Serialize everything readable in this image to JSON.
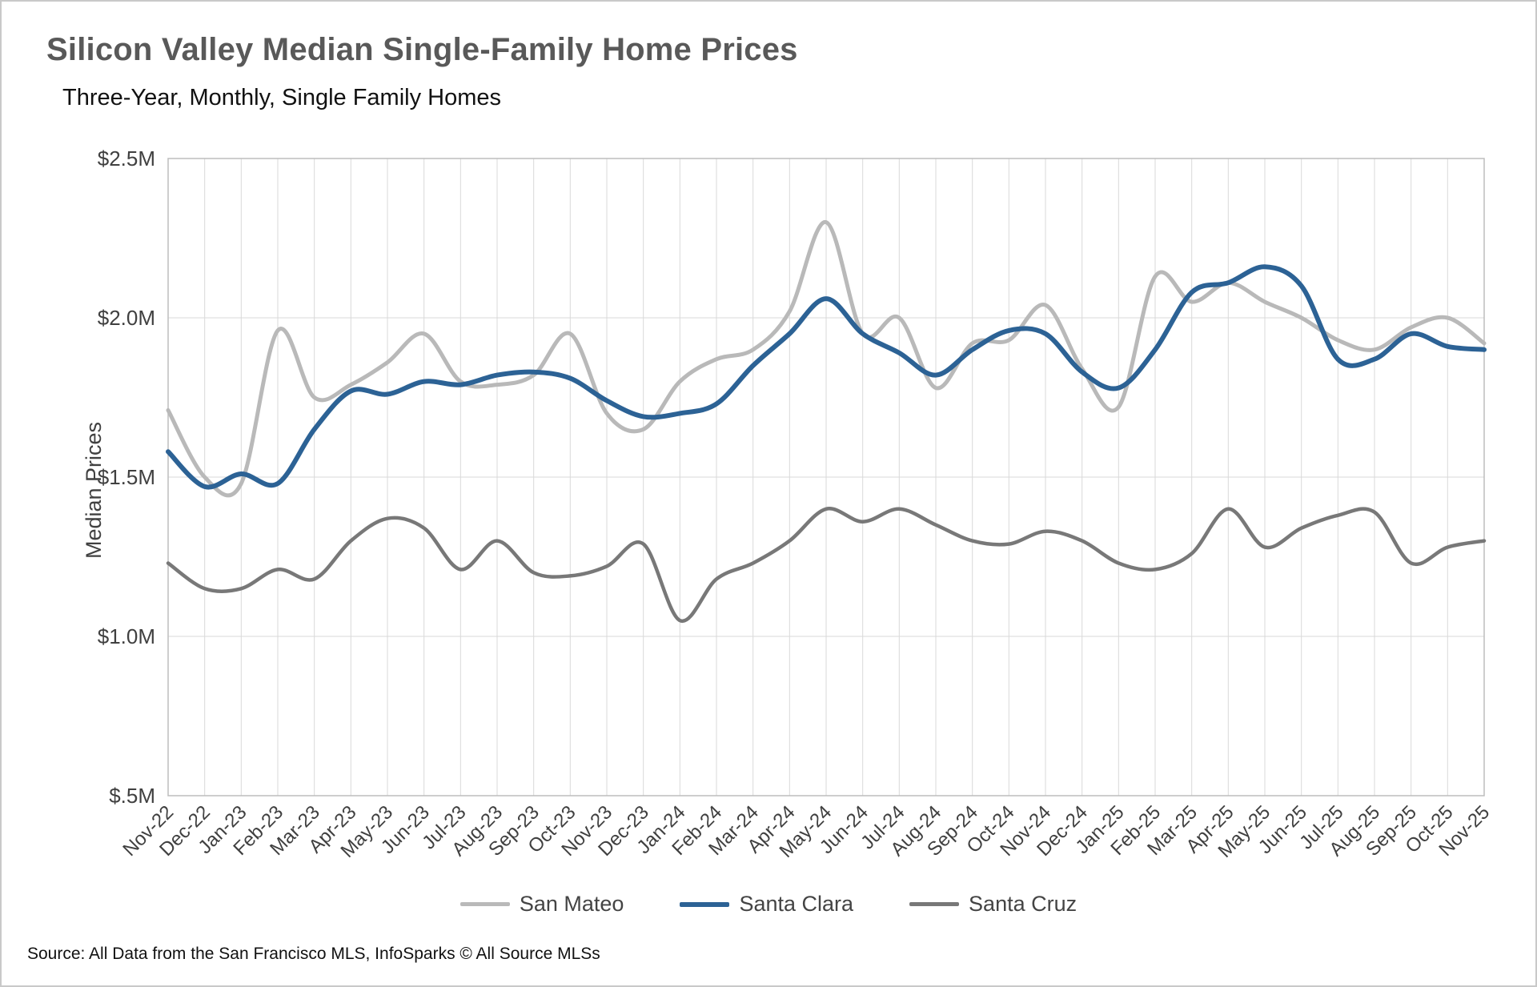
{
  "title": "Silicon Valley Median Single-Family Home Prices",
  "subtitle": "Three-Year, Monthly, Single Family Homes",
  "source": "Source: All Data from the San Francisco MLS, InfoSparks © All Source MLSs",
  "chart_data": {
    "type": "line",
    "title": "Silicon Valley Median Single-Family Home Prices",
    "subtitle": "Three-Year, Monthly, Single Family Homes",
    "xlabel": "",
    "ylabel": "Median Prices",
    "unit": "millions USD",
    "ylim": [
      0.5,
      2.5
    ],
    "ytick_values": [
      0.5,
      1.0,
      1.5,
      2.0,
      2.5
    ],
    "ytick_labels": [
      "$.5M",
      "$1.0M",
      "$1.5M",
      "$2.0M",
      "$2.5M"
    ],
    "grid": "both",
    "legend_position": "bottom",
    "categories": [
      "Nov-22",
      "Dec-22",
      "Jan-23",
      "Feb-23",
      "Mar-23",
      "Apr-23",
      "May-23",
      "Jun-23",
      "Jul-23",
      "Aug-23",
      "Sep-23",
      "Oct-23",
      "Nov-23",
      "Dec-23",
      "Jan-24",
      "Feb-24",
      "Mar-24",
      "Apr-24",
      "May-24",
      "Jun-24",
      "Jul-24",
      "Aug-24",
      "Sep-24",
      "Oct-24",
      "Nov-24",
      "Dec-24",
      "Jan-25",
      "Feb-25",
      "Mar-25",
      "Apr-25",
      "May-25",
      "Jun-25",
      "Jul-25",
      "Aug-25",
      "Sep-25",
      "Oct-25",
      "Nov-25"
    ],
    "series": [
      {
        "name": "San Mateo",
        "color": "#b9b9b9",
        "width": 5,
        "values": [
          1.71,
          1.5,
          1.48,
          1.96,
          1.75,
          1.79,
          1.86,
          1.95,
          1.8,
          1.79,
          1.82,
          1.95,
          1.7,
          1.65,
          1.8,
          1.87,
          1.9,
          2.02,
          2.3,
          1.95,
          2.0,
          1.78,
          1.92,
          1.93,
          2.04,
          1.84,
          1.72,
          2.13,
          2.05,
          2.11,
          2.05,
          2.0,
          1.93,
          1.9,
          1.97,
          2.0,
          1.92
        ]
      },
      {
        "name": "Santa Clara",
        "color": "#2c6295",
        "width": 6,
        "values": [
          1.58,
          1.47,
          1.51,
          1.48,
          1.65,
          1.77,
          1.76,
          1.8,
          1.79,
          1.82,
          1.83,
          1.81,
          1.74,
          1.69,
          1.7,
          1.73,
          1.85,
          1.95,
          2.06,
          1.95,
          1.89,
          1.82,
          1.9,
          1.96,
          1.95,
          1.83,
          1.78,
          1.9,
          2.08,
          2.11,
          2.16,
          2.1,
          1.87,
          1.87,
          1.95,
          1.91,
          1.9
        ]
      },
      {
        "name": "Santa Cruz",
        "color": "#787878",
        "width": 4.5,
        "values": [
          1.23,
          1.15,
          1.15,
          1.21,
          1.18,
          1.3,
          1.37,
          1.34,
          1.21,
          1.3,
          1.2,
          1.19,
          1.22,
          1.29,
          1.05,
          1.18,
          1.23,
          1.3,
          1.4,
          1.36,
          1.4,
          1.35,
          1.3,
          1.29,
          1.33,
          1.3,
          1.23,
          1.21,
          1.26,
          1.4,
          1.28,
          1.34,
          1.38,
          1.39,
          1.23,
          1.28,
          1.3
        ]
      }
    ]
  }
}
